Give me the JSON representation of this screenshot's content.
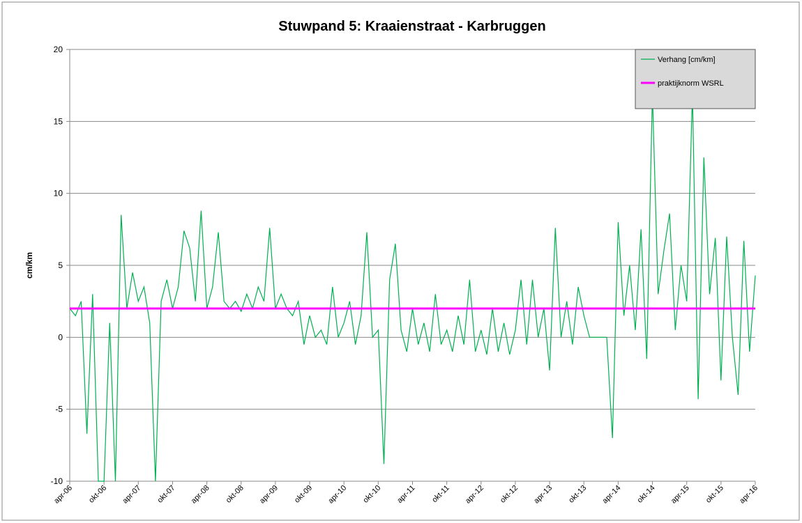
{
  "chart_data": {
    "type": "line",
    "title": "Stuwpand 5: Kraaienstraat - Karbruggen",
    "y_label": "cm/km",
    "x": [
      "2006-04",
      "2006-05",
      "2006-06",
      "2006-07",
      "2006-08",
      "2006-09",
      "2006-10",
      "2006-11",
      "2006-12",
      "2007-01",
      "2007-02",
      "2007-03",
      "2007-04",
      "2007-05",
      "2007-06",
      "2007-07",
      "2007-08",
      "2007-09",
      "2007-10",
      "2007-11",
      "2007-12",
      "2008-01",
      "2008-02",
      "2008-03",
      "2008-04",
      "2008-05",
      "2008-06",
      "2008-07",
      "2008-08",
      "2008-09",
      "2008-10",
      "2008-11",
      "2008-12",
      "2009-01",
      "2009-02",
      "2009-03",
      "2009-04",
      "2009-05",
      "2009-06",
      "2009-07",
      "2009-08",
      "2009-09",
      "2009-10",
      "2009-11",
      "2009-12",
      "2010-01",
      "2010-02",
      "2010-03",
      "2010-04",
      "2010-05",
      "2010-06",
      "2010-07",
      "2010-08",
      "2010-09",
      "2010-10",
      "2010-11",
      "2010-12",
      "2011-01",
      "2011-02",
      "2011-03",
      "2011-04",
      "2011-05",
      "2011-06",
      "2011-07",
      "2011-08",
      "2011-09",
      "2011-10",
      "2011-11",
      "2011-12",
      "2012-01",
      "2012-02",
      "2012-03",
      "2012-04",
      "2012-05",
      "2012-06",
      "2012-07",
      "2012-08",
      "2012-09",
      "2012-10",
      "2012-11",
      "2012-12",
      "2013-01",
      "2013-02",
      "2013-03",
      "2013-04",
      "2013-05",
      "2013-06",
      "2013-07",
      "2013-08",
      "2013-09",
      "2013-10",
      "2013-11",
      "2013-12",
      "2014-01",
      "2014-02",
      "2014-03",
      "2014-04",
      "2014-05",
      "2014-06",
      "2014-07",
      "2014-08",
      "2014-09",
      "2014-10",
      "2014-11",
      "2014-12",
      "2015-01",
      "2015-02",
      "2015-03",
      "2015-04",
      "2015-05",
      "2015-06",
      "2015-07",
      "2015-08",
      "2015-09",
      "2015-10",
      "2015-11",
      "2015-12",
      "2016-01",
      "2016-02",
      "2016-03",
      "2016-04"
    ],
    "series": [
      {
        "name": "Verhang [cm/km]",
        "color": "#00b050",
        "values": [
          2.0,
          1.5,
          2.5,
          -6.7,
          3.0,
          -10,
          -10,
          1.0,
          -10,
          8.5,
          2.0,
          4.5,
          2.5,
          3.5,
          1.0,
          -10,
          2.5,
          4.0,
          2.0,
          3.5,
          7.4,
          6.2,
          2.5,
          8.8,
          2.0,
          3.5,
          7.3,
          2.5,
          2.0,
          2.5,
          1.8,
          3.0,
          2.0,
          3.5,
          2.5,
          7.6,
          2.0,
          3.0,
          2.0,
          1.5,
          2.5,
          -0.5,
          1.5,
          0.0,
          0.5,
          -0.5,
          3.5,
          0.0,
          1.0,
          2.5,
          -0.5,
          1.5,
          7.3,
          0.0,
          0.5,
          -8.8,
          4.0,
          6.5,
          0.5,
          -1.0,
          2.0,
          -0.5,
          1.0,
          -1.0,
          3.0,
          -0.5,
          0.5,
          -1.0,
          1.5,
          -0.5,
          4.0,
          -1.0,
          0.5,
          -1.2,
          2.0,
          -1.0,
          1.0,
          -1.2,
          0.5,
          4.0,
          -0.5,
          4.0,
          0.0,
          2.0,
          -2.3,
          7.6,
          0.0,
          2.5,
          -0.5,
          3.5,
          1.5,
          0,
          0,
          0,
          0,
          -7.0,
          8.0,
          1.5,
          5.0,
          0.5,
          7.5,
          -1.5,
          17.0,
          3.0,
          6.0,
          8.6,
          0.5,
          5.0,
          2.5,
          17.0,
          -4.3,
          12.5,
          3.0,
          6.9,
          -3.0,
          7.0,
          0.0,
          -4.0,
          6.7,
          -1.0,
          4.3
        ]
      }
    ],
    "reference_line": {
      "name": "praktijknorm WSRL",
      "value": 2,
      "color": "#ff00ff"
    },
    "xlim": [
      "2006-04",
      "2016-04"
    ],
    "xticks": [
      {
        "value": "2006-04",
        "label": "apr-06"
      },
      {
        "value": "2006-10",
        "label": "okt-06"
      },
      {
        "value": "2007-04",
        "label": "apr-07"
      },
      {
        "value": "2007-10",
        "label": "okt-07"
      },
      {
        "value": "2008-04",
        "label": "apr-08"
      },
      {
        "value": "2008-10",
        "label": "okt-08"
      },
      {
        "value": "2009-04",
        "label": "apr-09"
      },
      {
        "value": "2009-10",
        "label": "okt-09"
      },
      {
        "value": "2010-04",
        "label": "apr-10"
      },
      {
        "value": "2010-10",
        "label": "okt-10"
      },
      {
        "value": "2011-04",
        "label": "apr-11"
      },
      {
        "value": "2011-10",
        "label": "okt-11"
      },
      {
        "value": "2012-04",
        "label": "apr-12"
      },
      {
        "value": "2012-10",
        "label": "okt-12"
      },
      {
        "value": "2013-04",
        "label": "apr-13"
      },
      {
        "value": "2013-10",
        "label": "okt-13"
      },
      {
        "value": "2014-04",
        "label": "apr-14"
      },
      {
        "value": "2014-10",
        "label": "okt-14"
      },
      {
        "value": "2015-04",
        "label": "apr-15"
      },
      {
        "value": "2015-10",
        "label": "okt-15"
      },
      {
        "value": "2016-04",
        "label": "apr-16"
      }
    ],
    "ylim": [
      -10,
      20
    ],
    "yticks": [
      -10,
      -5,
      0,
      5,
      10,
      15,
      20
    ],
    "grid": true,
    "legend": "top-right"
  }
}
